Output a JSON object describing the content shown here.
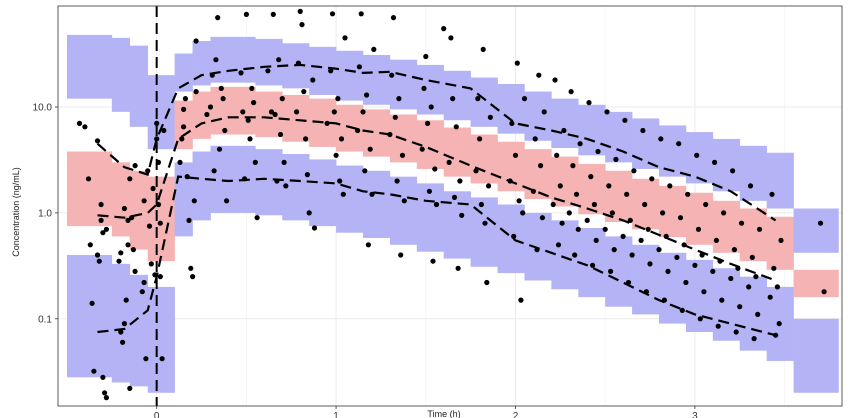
{
  "chart_data": {
    "type": "scatter",
    "title": "",
    "xlabel": "Time (h)",
    "ylabel": "Concentration (ng/mL)",
    "xlim": [
      -0.55,
      3.82
    ],
    "ylim": [
      0.015,
      90
    ],
    "y_scale": "log",
    "grid": true,
    "x_ticks": [
      0,
      1,
      2,
      3
    ],
    "x_tick_labels": [
      "0",
      "1",
      "2",
      "3"
    ],
    "y_ticks": [
      0.1,
      1.0,
      10.0
    ],
    "y_tick_labels": [
      "0.1",
      "1.0",
      "10.0"
    ],
    "dosing_time": 0,
    "colors": {
      "prediction_interval_outer": "#b3b3f5",
      "prediction_interval_median": "#f5b3b3",
      "observed_lines": "#000000",
      "points": "#000000"
    },
    "bins": [
      {
        "x0": -0.5,
        "x1": -0.25,
        "p5_lo": 0.028,
        "p5_hi": 0.4,
        "med_lo": 0.75,
        "med_hi": 3.8,
        "p95_lo": 12.0,
        "p95_hi": 48.0
      },
      {
        "x0": -0.25,
        "x1": -0.15,
        "p5_lo": 0.025,
        "p5_hi": 0.33,
        "med_lo": 0.6,
        "med_hi": 3.0,
        "p95_lo": 9.0,
        "p95_hi": 45.0
      },
      {
        "x0": -0.15,
        "x1": -0.05,
        "p5_lo": 0.023,
        "p5_hi": 0.26,
        "med_lo": 0.45,
        "med_hi": 2.5,
        "p95_lo": 6.5,
        "p95_hi": 38.0
      },
      {
        "x0": -0.05,
        "x1": 0.1,
        "p5_lo": 0.02,
        "p5_hi": 0.2,
        "med_lo": 0.35,
        "med_hi": 2.2,
        "p95_lo": 4.0,
        "p95_hi": 20.0
      },
      {
        "x0": 0.1,
        "x1": 0.2,
        "p5_lo": 0.6,
        "p5_hi": 3.0,
        "med_lo": 4.0,
        "med_hi": 11.5,
        "p95_lo": 14.0,
        "p95_hi": 32.0
      },
      {
        "x0": 0.2,
        "x1": 0.3,
        "p5_lo": 0.85,
        "p5_hi": 3.8,
        "med_lo": 5.0,
        "med_hi": 14.0,
        "p95_lo": 16.0,
        "p95_hi": 42.0
      },
      {
        "x0": 0.3,
        "x1": 0.55,
        "p5_lo": 1.0,
        "p5_hi": 4.3,
        "med_lo": 5.5,
        "med_hi": 15.5,
        "p95_lo": 17.0,
        "p95_hi": 46.0
      },
      {
        "x0": 0.55,
        "x1": 0.7,
        "p5_lo": 0.95,
        "p5_hi": 4.0,
        "med_lo": 5.2,
        "med_hi": 14.0,
        "p95_lo": 16.0,
        "p95_hi": 44.0
      },
      {
        "x0": 0.7,
        "x1": 0.85,
        "p5_lo": 0.85,
        "p5_hi": 3.6,
        "med_lo": 4.7,
        "med_hi": 13.0,
        "p95_lo": 15.0,
        "p95_hi": 40.0
      },
      {
        "x0": 0.85,
        "x1": 1.0,
        "p5_lo": 0.75,
        "p5_hi": 3.2,
        "med_lo": 4.2,
        "med_hi": 12.0,
        "p95_lo": 13.0,
        "p95_hi": 37.0
      },
      {
        "x0": 1.0,
        "x1": 1.15,
        "p5_lo": 0.65,
        "p5_hi": 2.8,
        "med_lo": 3.8,
        "med_hi": 10.5,
        "p95_lo": 11.5,
        "p95_hi": 34.0
      },
      {
        "x0": 1.15,
        "x1": 1.3,
        "p5_lo": 0.58,
        "p5_hi": 2.5,
        "med_lo": 3.4,
        "med_hi": 9.5,
        "p95_lo": 10.5,
        "p95_hi": 31.0
      },
      {
        "x0": 1.3,
        "x1": 1.45,
        "p5_lo": 0.5,
        "p5_hi": 2.2,
        "med_lo": 3.0,
        "med_hi": 8.5,
        "p95_lo": 9.5,
        "p95_hi": 28.0
      },
      {
        "x0": 1.45,
        "x1": 1.6,
        "p5_lo": 0.43,
        "p5_hi": 1.9,
        "med_lo": 2.6,
        "med_hi": 7.5,
        "p95_lo": 8.5,
        "p95_hi": 25.0
      },
      {
        "x0": 1.6,
        "x1": 1.75,
        "p5_lo": 0.37,
        "p5_hi": 1.6,
        "med_lo": 2.2,
        "med_hi": 6.4,
        "p95_lo": 7.5,
        "p95_hi": 22.0
      },
      {
        "x0": 1.75,
        "x1": 1.9,
        "p5_lo": 0.31,
        "p5_hi": 1.4,
        "med_lo": 1.9,
        "med_hi": 5.5,
        "p95_lo": 6.5,
        "p95_hi": 19.0
      },
      {
        "x0": 1.9,
        "x1": 2.05,
        "p5_lo": 0.27,
        "p5_hi": 1.2,
        "med_lo": 1.6,
        "med_hi": 4.7,
        "p95_lo": 5.6,
        "p95_hi": 16.5
      },
      {
        "x0": 2.05,
        "x1": 2.2,
        "p5_lo": 0.23,
        "p5_hi": 1.0,
        "med_lo": 1.35,
        "med_hi": 4.0,
        "p95_lo": 4.8,
        "p95_hi": 14.0
      },
      {
        "x0": 2.2,
        "x1": 2.35,
        "p5_lo": 0.19,
        "p5_hi": 0.85,
        "med_lo": 1.15,
        "med_hi": 3.4,
        "p95_lo": 4.1,
        "p95_hi": 12.0
      },
      {
        "x0": 2.35,
        "x1": 2.5,
        "p5_lo": 0.16,
        "p5_hi": 0.72,
        "med_lo": 0.97,
        "med_hi": 2.9,
        "p95_lo": 3.5,
        "p95_hi": 10.5
      },
      {
        "x0": 2.5,
        "x1": 2.65,
        "p5_lo": 0.13,
        "p5_hi": 0.6,
        "med_lo": 0.82,
        "med_hi": 2.5,
        "p95_lo": 3.0,
        "p95_hi": 9.0
      },
      {
        "x0": 2.65,
        "x1": 2.8,
        "p5_lo": 0.11,
        "p5_hi": 0.5,
        "med_lo": 0.7,
        "med_hi": 2.1,
        "p95_lo": 2.6,
        "p95_hi": 7.8
      },
      {
        "x0": 2.8,
        "x1": 2.95,
        "p5_lo": 0.09,
        "p5_hi": 0.42,
        "med_lo": 0.59,
        "med_hi": 1.8,
        "p95_lo": 2.2,
        "p95_hi": 6.7
      },
      {
        "x0": 2.95,
        "x1": 3.1,
        "p5_lo": 0.075,
        "p5_hi": 0.36,
        "med_lo": 0.5,
        "med_hi": 1.55,
        "p95_lo": 1.9,
        "p95_hi": 5.8
      },
      {
        "x0": 3.1,
        "x1": 3.25,
        "p5_lo": 0.062,
        "p5_hi": 0.3,
        "med_lo": 0.42,
        "med_hi": 1.3,
        "p95_lo": 1.6,
        "p95_hi": 5.0
      },
      {
        "x0": 3.25,
        "x1": 3.4,
        "p5_lo": 0.05,
        "p5_hi": 0.25,
        "med_lo": 0.35,
        "med_hi": 1.1,
        "p95_lo": 1.3,
        "p95_hi": 4.3
      },
      {
        "x0": 3.4,
        "x1": 3.55,
        "p5_lo": 0.04,
        "p5_hi": 0.2,
        "med_lo": 0.29,
        "med_hi": 0.92,
        "p95_lo": 1.1,
        "p95_hi": 3.7
      },
      {
        "x0": 3.55,
        "x1": 3.8,
        "p5_lo": 0.02,
        "p5_hi": 0.1,
        "med_lo": 0.16,
        "med_hi": 0.29,
        "p95_lo": 0.42,
        "p95_hi": 1.1
      }
    ],
    "observed_percentiles": {
      "x": [
        -0.33,
        -0.18,
        -0.05,
        0.0,
        0.12,
        0.25,
        0.4,
        0.6,
        0.8,
        1.0,
        1.15,
        1.3,
        1.5,
        1.75,
        2.0,
        2.2,
        2.4,
        2.6,
        2.8,
        3.0,
        3.2,
        3.45
      ],
      "p95": [
        4.5,
        2.7,
        2.3,
        5.0,
        15.0,
        20.0,
        22.0,
        24.0,
        25.0,
        23.0,
        21.0,
        21.5,
        18.0,
        15.0,
        7.0,
        6.0,
        5.0,
        3.8,
        2.7,
        2.2,
        1.6,
        0.85
      ],
      "p50": [
        0.95,
        0.9,
        1.0,
        1.2,
        5.0,
        7.0,
        8.0,
        8.0,
        7.5,
        7.0,
        6.0,
        5.5,
        4.2,
        2.8,
        1.9,
        1.4,
        1.1,
        0.85,
        0.62,
        0.45,
        0.33,
        0.23
      ],
      "p5": [
        0.075,
        0.08,
        0.12,
        0.25,
        2.2,
        2.1,
        2.0,
        2.1,
        2.0,
        1.9,
        1.6,
        1.5,
        1.3,
        1.2,
        0.55,
        0.42,
        0.32,
        0.22,
        0.15,
        0.11,
        0.09,
        0.07
      ]
    },
    "observations": [
      [
        -0.43,
        7.0
      ],
      [
        -0.4,
        6.5
      ],
      [
        -0.38,
        2.1
      ],
      [
        -0.37,
        0.5
      ],
      [
        -0.36,
        0.14
      ],
      [
        -0.35,
        0.032
      ],
      [
        -0.33,
        4.8
      ],
      [
        -0.33,
        0.4
      ],
      [
        -0.32,
        0.35
      ],
      [
        -0.31,
        1.2
      ],
      [
        -0.31,
        0.85
      ],
      [
        -0.3,
        0.65
      ],
      [
        -0.3,
        0.028
      ],
      [
        -0.29,
        0.02
      ],
      [
        -0.28,
        0.018
      ],
      [
        -0.28,
        0.7
      ],
      [
        -0.21,
        0.35
      ],
      [
        -0.2,
        0.42
      ],
      [
        -0.2,
        0.075
      ],
      [
        -0.19,
        0.06
      ],
      [
        -0.18,
        0.09
      ],
      [
        -0.18,
        1.1
      ],
      [
        -0.17,
        0.15
      ],
      [
        -0.16,
        0.5
      ],
      [
        -0.16,
        0.85
      ],
      [
        -0.15,
        2.1
      ],
      [
        -0.15,
        0.022
      ],
      [
        -0.14,
        0.9
      ],
      [
        -0.13,
        0.45
      ],
      [
        -0.12,
        0.28
      ],
      [
        -0.12,
        2.8
      ],
      [
        -0.08,
        0.18
      ],
      [
        -0.07,
        1.3
      ],
      [
        -0.07,
        0.22
      ],
      [
        -0.06,
        0.042
      ],
      [
        -0.05,
        2.5
      ],
      [
        -0.04,
        0.75
      ],
      [
        -0.03,
        0.33
      ],
      [
        -0.02,
        1.7
      ],
      [
        -0.01,
        0.26
      ],
      [
        0.0,
        5.0
      ],
      [
        0.0,
        7.0
      ],
      [
        0.01,
        3.0
      ],
      [
        0.01,
        1.2
      ],
      [
        0.02,
        0.25
      ],
      [
        0.02,
        0.8
      ],
      [
        0.03,
        0.042
      ],
      [
        0.04,
        6.0
      ],
      [
        0.13,
        3.0
      ],
      [
        0.14,
        5.0
      ],
      [
        0.15,
        6.5
      ],
      [
        0.15,
        9.5
      ],
      [
        0.16,
        12.0
      ],
      [
        0.17,
        2.2
      ],
      [
        0.18,
        0.85
      ],
      [
        0.19,
        0.3
      ],
      [
        0.2,
        0.25
      ],
      [
        0.21,
        1.3
      ],
      [
        0.22,
        42.0
      ],
      [
        0.22,
        14.0
      ],
      [
        0.28,
        8.5
      ],
      [
        0.3,
        10.0
      ],
      [
        0.31,
        20.0
      ],
      [
        0.32,
        2.5
      ],
      [
        0.33,
        28.0
      ],
      [
        0.34,
        70.0
      ],
      [
        0.35,
        4.0
      ],
      [
        0.36,
        15.0
      ],
      [
        0.37,
        12.0
      ],
      [
        0.38,
        6.0
      ],
      [
        0.39,
        1.3
      ],
      [
        0.47,
        21.0
      ],
      [
        0.48,
        9.0
      ],
      [
        0.49,
        2.1
      ],
      [
        0.5,
        75.0
      ],
      [
        0.51,
        7.5
      ],
      [
        0.52,
        5.0
      ],
      [
        0.53,
        15.0
      ],
      [
        0.54,
        11.0
      ],
      [
        0.55,
        3.0
      ],
      [
        0.56,
        0.9
      ],
      [
        0.62,
        22.0
      ],
      [
        0.64,
        9.0
      ],
      [
        0.65,
        75.0
      ],
      [
        0.66,
        8.5
      ],
      [
        0.67,
        2.0
      ],
      [
        0.68,
        28.0
      ],
      [
        0.69,
        5.5
      ],
      [
        0.7,
        12.0
      ],
      [
        0.71,
        3.0
      ],
      [
        0.72,
        1.8
      ],
      [
        0.78,
        9.0
      ],
      [
        0.79,
        26.0
      ],
      [
        0.8,
        80.0
      ],
      [
        0.81,
        60.0
      ],
      [
        0.82,
        14.0
      ],
      [
        0.83,
        5.0
      ],
      [
        0.84,
        2.3
      ],
      [
        0.85,
        1.0
      ],
      [
        0.87,
        18.0
      ],
      [
        0.88,
        0.72
      ],
      [
        0.95,
        7.0
      ],
      [
        0.97,
        22.0
      ],
      [
        0.98,
        76.0
      ],
      [
        0.99,
        9.0
      ],
      [
        1.0,
        3.5
      ],
      [
        1.01,
        12.0
      ],
      [
        1.02,
        2.0
      ],
      [
        1.03,
        5.0
      ],
      [
        1.04,
        1.5
      ],
      [
        1.05,
        45.0
      ],
      [
        1.12,
        6.0
      ],
      [
        1.13,
        24.0
      ],
      [
        1.14,
        76.0
      ],
      [
        1.15,
        9.0
      ],
      [
        1.16,
        2.5
      ],
      [
        1.17,
        13.0
      ],
      [
        1.18,
        0.5
      ],
      [
        1.19,
        4.0
      ],
      [
        1.2,
        1.5
      ],
      [
        1.21,
        35.0
      ],
      [
        1.3,
        5.5
      ],
      [
        1.31,
        20.0
      ],
      [
        1.32,
        70.0
      ],
      [
        1.33,
        8.0
      ],
      [
        1.34,
        2.0
      ],
      [
        1.35,
        12.0
      ],
      [
        1.36,
        0.4
      ],
      [
        1.37,
        3.5
      ],
      [
        1.38,
        1.3
      ],
      [
        1.48,
        4.0
      ],
      [
        1.49,
        15.0
      ],
      [
        1.5,
        30.0
      ],
      [
        1.51,
        7.0
      ],
      [
        1.52,
        1.6
      ],
      [
        1.53,
        10.0
      ],
      [
        1.54,
        0.35
      ],
      [
        1.55,
        2.6
      ],
      [
        1.56,
        1.2
      ],
      [
        1.6,
        55.0
      ],
      [
        1.63,
        3.0
      ],
      [
        1.64,
        45.0
      ],
      [
        1.65,
        12.0
      ],
      [
        1.66,
        1.4
      ],
      [
        1.67,
        6.5
      ],
      [
        1.68,
        0.3
      ],
      [
        1.69,
        2.0
      ],
      [
        1.7,
        0.95
      ],
      [
        1.78,
        2.5
      ],
      [
        1.79,
        12.0
      ],
      [
        1.8,
        5.0
      ],
      [
        1.81,
        1.2
      ],
      [
        1.82,
        35.0
      ],
      [
        1.83,
        0.8
      ],
      [
        1.84,
        0.22
      ],
      [
        1.85,
        1.8
      ],
      [
        1.86,
        8.0
      ],
      [
        1.97,
        2.0
      ],
      [
        1.98,
        7.0
      ],
      [
        1.99,
        0.6
      ],
      [
        2.0,
        3.5
      ],
      [
        2.01,
        26.0
      ],
      [
        2.02,
        1.3
      ],
      [
        2.03,
        0.15
      ],
      [
        2.04,
        1.0
      ],
      [
        2.05,
        12.0
      ],
      [
        2.1,
        1.6
      ],
      [
        2.11,
        5.0
      ],
      [
        2.12,
        0.45
      ],
      [
        2.13,
        20.0
      ],
      [
        2.14,
        2.8
      ],
      [
        2.15,
        0.9
      ],
      [
        2.16,
        9.0
      ],
      [
        2.21,
        1.2
      ],
      [
        2.22,
        18.0
      ],
      [
        2.23,
        3.5
      ],
      [
        2.24,
        0.5
      ],
      [
        2.25,
        1.8
      ],
      [
        2.26,
        0.8
      ],
      [
        2.27,
        6.0
      ],
      [
        2.3,
        1.0
      ],
      [
        2.31,
        14.0
      ],
      [
        2.32,
        2.8
      ],
      [
        2.33,
        0.4
      ],
      [
        2.34,
        1.5
      ],
      [
        2.35,
        0.7
      ],
      [
        2.36,
        4.5
      ],
      [
        2.4,
        0.85
      ],
      [
        2.41,
        11.0
      ],
      [
        2.42,
        2.2
      ],
      [
        2.43,
        0.32
      ],
      [
        2.44,
        1.2
      ],
      [
        2.45,
        0.55
      ],
      [
        2.46,
        3.8
      ],
      [
        2.5,
        0.7
      ],
      [
        2.51,
        9.0
      ],
      [
        2.52,
        1.8
      ],
      [
        2.53,
        0.28
      ],
      [
        2.54,
        1.0
      ],
      [
        2.55,
        0.45
      ],
      [
        2.56,
        3.2
      ],
      [
        2.6,
        0.6
      ],
      [
        2.61,
        7.5
      ],
      [
        2.62,
        1.5
      ],
      [
        2.63,
        0.22
      ],
      [
        2.64,
        0.85
      ],
      [
        2.65,
        0.4
      ],
      [
        2.66,
        2.5
      ],
      [
        2.7,
        0.55
      ],
      [
        2.71,
        6.0
      ],
      [
        2.72,
        1.2
      ],
      [
        2.73,
        0.18
      ],
      [
        2.74,
        0.7
      ],
      [
        2.75,
        0.33
      ],
      [
        2.76,
        2.1
      ],
      [
        2.8,
        0.45
      ],
      [
        2.81,
        5.0
      ],
      [
        2.82,
        1.0
      ],
      [
        2.83,
        0.15
      ],
      [
        2.84,
        0.6
      ],
      [
        2.85,
        0.28
      ],
      [
        2.86,
        1.8
      ],
      [
        2.9,
        0.38
      ],
      [
        2.91,
        4.5
      ],
      [
        2.92,
        0.9
      ],
      [
        2.93,
        0.12
      ],
      [
        2.94,
        0.5
      ],
      [
        2.95,
        0.22
      ],
      [
        2.96,
        1.5
      ],
      [
        3.0,
        0.32
      ],
      [
        3.01,
        3.5
      ],
      [
        3.02,
        0.7
      ],
      [
        3.03,
        0.1
      ],
      [
        3.04,
        0.4
      ],
      [
        3.05,
        0.18
      ],
      [
        3.06,
        1.2
      ],
      [
        3.1,
        0.28
      ],
      [
        3.11,
        3.0
      ],
      [
        3.12,
        0.55
      ],
      [
        3.13,
        0.085
      ],
      [
        3.14,
        0.35
      ],
      [
        3.15,
        0.15
      ],
      [
        3.16,
        1.0
      ],
      [
        3.2,
        0.24
      ],
      [
        3.21,
        2.5
      ],
      [
        3.22,
        0.45
      ],
      [
        3.23,
        0.075
      ],
      [
        3.24,
        0.3
      ],
      [
        3.25,
        0.13
      ],
      [
        3.26,
        0.8
      ],
      [
        3.3,
        0.2
      ],
      [
        3.31,
        1.8
      ],
      [
        3.32,
        0.38
      ],
      [
        3.33,
        0.065
      ],
      [
        3.34,
        0.25
      ],
      [
        3.35,
        0.11
      ],
      [
        3.36,
        0.7
      ],
      [
        3.42,
        0.16
      ],
      [
        3.43,
        1.5
      ],
      [
        3.44,
        0.3
      ],
      [
        3.45,
        0.07
      ],
      [
        3.46,
        0.2
      ],
      [
        3.47,
        0.09
      ],
      [
        3.48,
        0.55
      ],
      [
        3.7,
        0.8
      ],
      [
        3.72,
        0.18
      ]
    ]
  }
}
